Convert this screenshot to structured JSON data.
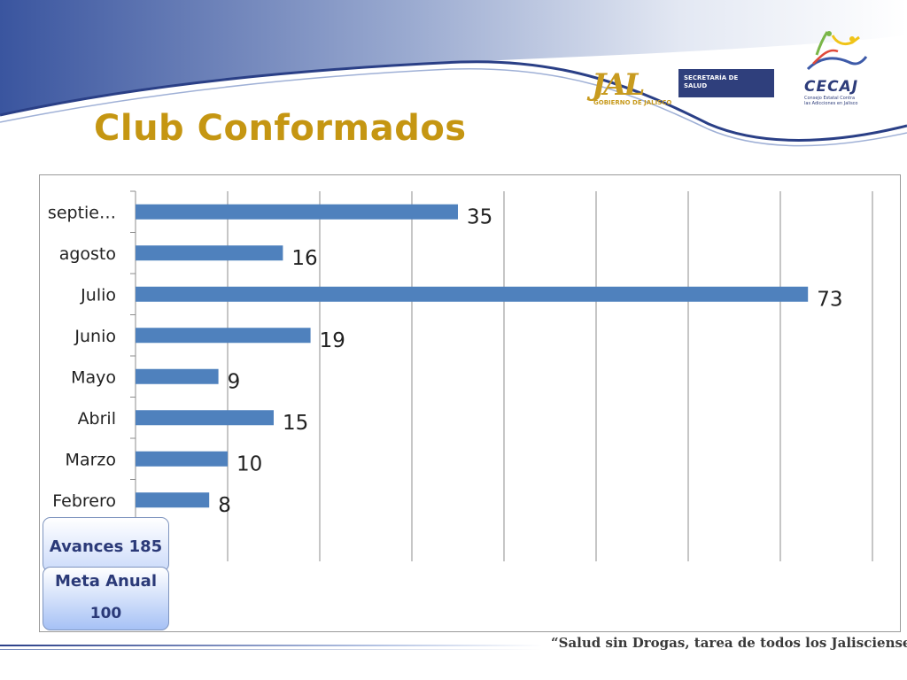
{
  "slide": {
    "title": "Club  Conformados",
    "footer": "“Salud sin Drogas, tarea de todos los Jaliscienses”"
  },
  "logos": {
    "jal": {
      "mark": "JAL",
      "sub": "GOBIERNO DE JALISCO",
      "box_line1": "SECRETARÍA DE",
      "box_line2": "SALUD"
    },
    "cecaj": {
      "name": "CECAJ",
      "sub_line1": "Consejo Estatal Contra",
      "sub_line2": "las Adicciones en Jalisco"
    }
  },
  "info": {
    "avances": "Avances 185",
    "meta_label": "Meta Anual",
    "meta_value": "100"
  },
  "colors": {
    "title": "#c59612",
    "bar": "#4f81bd",
    "header_blue": "#2f4a96",
    "gridline": "#8c8c8c"
  },
  "chart_data": {
    "type": "bar",
    "orientation": "horizontal",
    "categories": [
      "septie…",
      "agosto",
      "Julio",
      "Junio",
      "Mayo",
      "Abril",
      "Marzo",
      "Febrero"
    ],
    "values": [
      35,
      16,
      73,
      19,
      9,
      15,
      10,
      8
    ],
    "xlim": [
      0,
      80
    ],
    "grid": true,
    "title": "",
    "xlabel": "",
    "ylabel": ""
  }
}
